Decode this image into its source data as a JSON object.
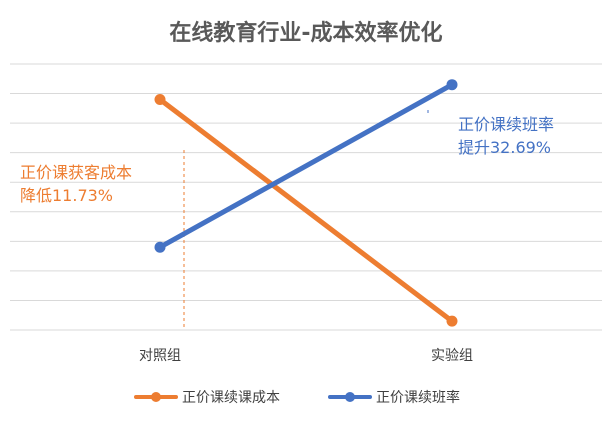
{
  "chart_data": {
    "type": "line",
    "title": "在线教育行业-成本效率优化",
    "categories": [
      "对照组",
      "实验组"
    ],
    "series": [
      {
        "name": "正价课续课成本",
        "values": [
          7.8,
          0.3
        ],
        "color": "#ED7D31"
      },
      {
        "name": "正价课续班率",
        "values": [
          2.8,
          8.3
        ],
        "color": "#4472C4"
      }
    ],
    "ylim": [
      0,
      9
    ],
    "ygrid_step": 1,
    "grid": true,
    "legend_position": "bottom",
    "annotations": [
      {
        "lines": [
          "正价课获客成本",
          "降低11.73%"
        ],
        "color": "#ED7D31",
        "category_index": 0,
        "series_index": 0
      },
      {
        "lines": [
          "正价课续班率",
          "提升32.69%"
        ],
        "color": "#4472C4",
        "category_index": 1,
        "series_index": 1
      }
    ]
  }
}
